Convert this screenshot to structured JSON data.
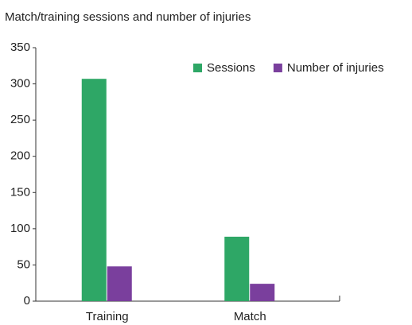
{
  "chart_data": {
    "type": "bar",
    "title": "Match/training sessions and number of injuries",
    "categories": [
      "Training",
      "Match"
    ],
    "series": [
      {
        "name": "Sessions",
        "color": "#2ea766",
        "values": [
          307,
          89
        ]
      },
      {
        "name": "Number of injuries",
        "color": "#7a3f9d",
        "values": [
          48,
          24
        ]
      }
    ],
    "ylim": [
      0,
      350
    ],
    "yticks": [
      0,
      50,
      100,
      150,
      200,
      250,
      300,
      350
    ],
    "grid": false,
    "legend": "top-right"
  }
}
